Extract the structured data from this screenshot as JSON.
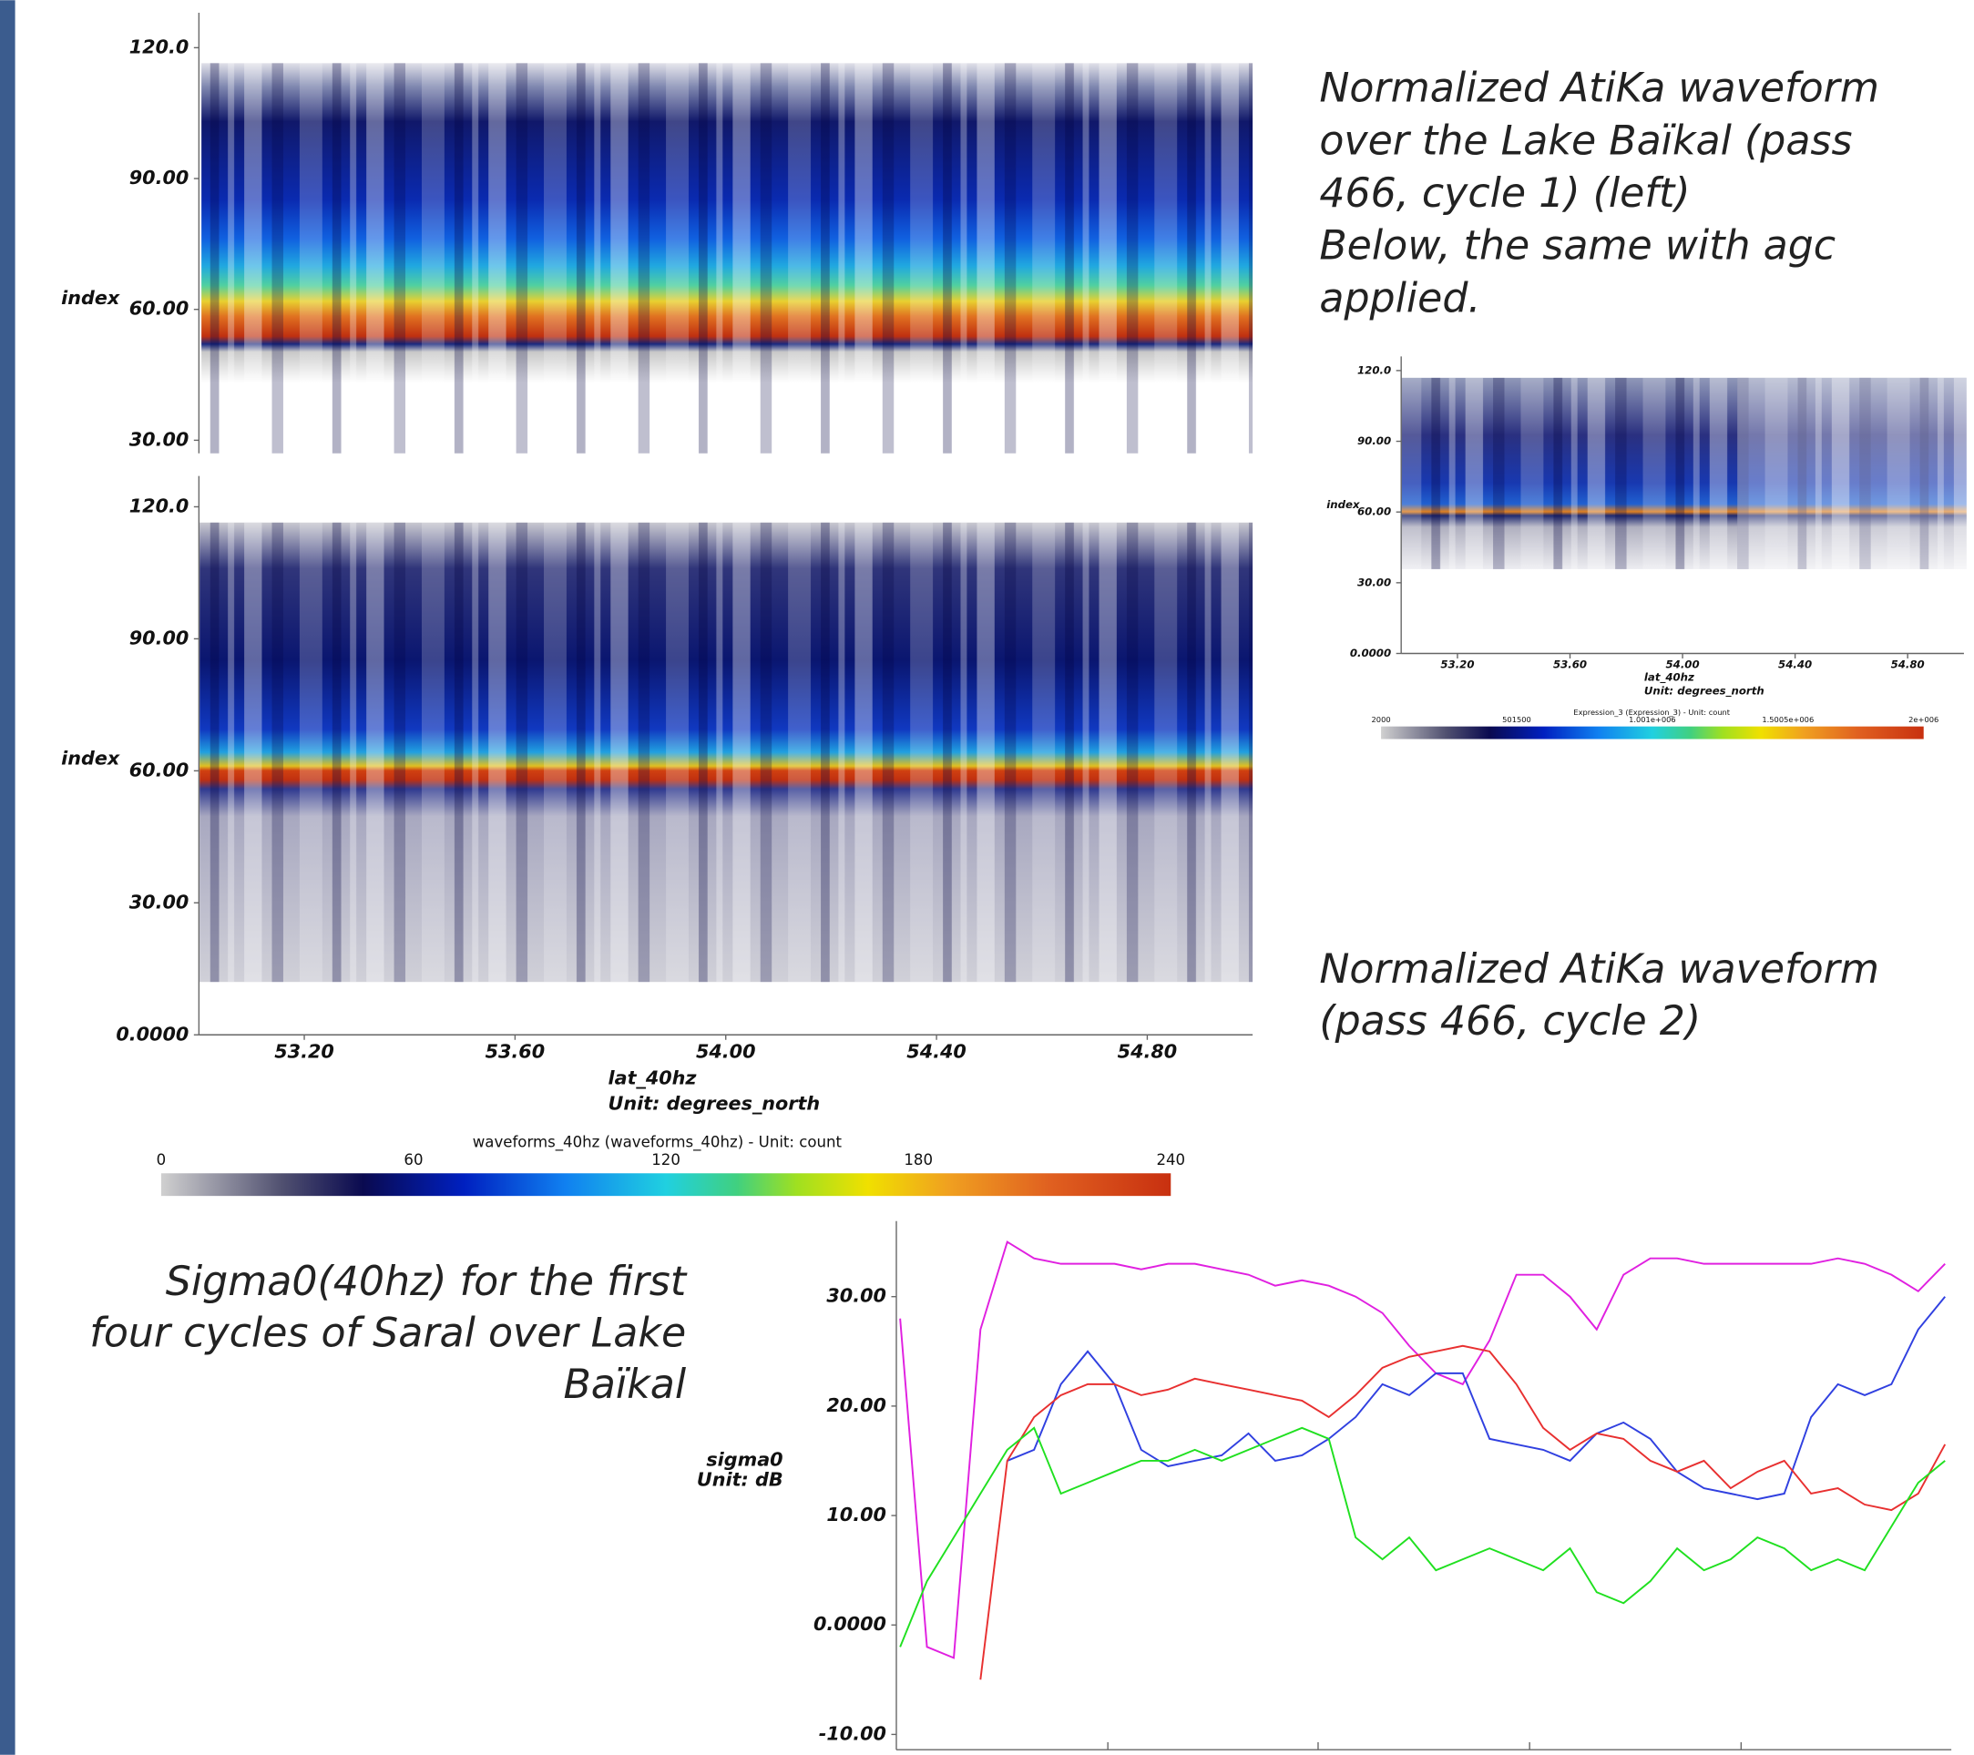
{
  "chart_data": [
    {
      "type": "heatmap",
      "ylabel": "index",
      "ylim": [
        27,
        128
      ],
      "yticks": [
        {
          "value": 30,
          "label": "30.00"
        },
        {
          "value": 60,
          "label": "60.00"
        },
        {
          "value": 90,
          "label": "90.00"
        },
        {
          "value": 120,
          "label": "120.0"
        }
      ],
      "annotations": [
        "Normalized AtiKa waveform",
        "over the Lake Baïkal (pass",
        "466, cycle 1) (left)",
        "Below, the same with agc",
        "applied."
      ]
    },
    {
      "type": "heatmap",
      "ylabel": "index",
      "xlabel": "lat_40hz",
      "xunit": "Unit: degrees_north",
      "ylim": [
        0,
        127
      ],
      "xlim": [
        53.0,
        55.0
      ],
      "yticks": [
        {
          "value": 0,
          "label": "0.0000"
        },
        {
          "value": 30,
          "label": "30.00"
        },
        {
          "value": 60,
          "label": "60.00"
        },
        {
          "value": 90,
          "label": "90.00"
        },
        {
          "value": 120,
          "label": "120.0"
        }
      ],
      "xticks": [
        {
          "value": 53.2,
          "label": "53.20"
        },
        {
          "value": 53.6,
          "label": "53.60"
        },
        {
          "value": 54,
          "label": "54.00"
        },
        {
          "value": 54.4,
          "label": "54.40"
        },
        {
          "value": 54.8,
          "label": "54.80"
        }
      ],
      "colorbar": {
        "title": "waveforms_40hz (waveforms_40hz) - Unit: count",
        "lim": [
          0,
          240
        ],
        "ticks": [
          0,
          60,
          120,
          180,
          240
        ]
      },
      "annotations": [
        "Normalized AtiKa waveform",
        "(pass 466, cycle 2)"
      ]
    },
    {
      "type": "heatmap",
      "ylabel": "index",
      "xlabel": "lat_40hz",
      "xunit": "Unit: degrees_north",
      "ylim": [
        0,
        126
      ],
      "xlim": [
        53.0,
        55.0
      ],
      "yticks": [
        {
          "value": 0,
          "label": "0.0000"
        },
        {
          "value": 30,
          "label": "30.00"
        },
        {
          "value": 60,
          "label": "60.00"
        },
        {
          "value": 90,
          "label": "90.00"
        },
        {
          "value": 120,
          "label": "120.0"
        }
      ],
      "xticks": [
        {
          "value": 53.2,
          "label": "53.20"
        },
        {
          "value": 53.6,
          "label": "53.60"
        },
        {
          "value": 54,
          "label": "54.00"
        },
        {
          "value": 54.4,
          "label": "54.40"
        },
        {
          "value": 54.8,
          "label": "54.80"
        }
      ],
      "colorbar": {
        "title": "Expression_3 (Expression_3) - Unit: count",
        "lim": [
          2000,
          2000000
        ],
        "ticks": [
          2000,
          501500,
          {
            "value": 1001000,
            "label": "1.001e+006"
          },
          {
            "value": 1500500,
            "label": "1.5005e+006"
          },
          {
            "value": 2000000,
            "label": "2e+006"
          }
        ]
      }
    },
    {
      "type": "line",
      "ylabel": "sigma0",
      "yunit": "Unit: dB",
      "ylim": [
        -11.4,
        36.9
      ],
      "yticks": [
        {
          "value": -10,
          "label": "-10.00"
        },
        {
          "value": 0,
          "label": "0.0000"
        },
        {
          "value": 10,
          "label": "10.00"
        },
        {
          "value": 20,
          "label": "20.00"
        },
        {
          "value": 30,
          "label": "30.00"
        }
      ],
      "series": [
        {
          "color": "#e020e0",
          "values": [
            28,
            -2,
            -3,
            27,
            35,
            33.5,
            33,
            33,
            33,
            32.5,
            33,
            33,
            32.5,
            32,
            31,
            31.5,
            31,
            30,
            28.5,
            25.5,
            23,
            22,
            26,
            32,
            32,
            30,
            27,
            32,
            33.5,
            33.5,
            33,
            33,
            33,
            33,
            33,
            33.5,
            33,
            32,
            30.5,
            33
          ]
        },
        {
          "color": "#3040e0",
          "values": [
            null,
            null,
            null,
            null,
            15,
            16,
            22,
            25,
            22,
            16,
            14.5,
            15,
            15.5,
            17.5,
            15,
            15.5,
            17,
            19,
            22,
            21,
            23,
            23,
            17,
            16.5,
            16,
            15,
            17.5,
            18.5,
            17,
            14,
            12.5,
            12,
            11.5,
            12,
            19,
            22,
            21,
            22,
            27,
            30
          ]
        },
        {
          "color": "#e83030",
          "values": [
            null,
            null,
            null,
            -5,
            15,
            19,
            21,
            22,
            22,
            21,
            21.5,
            22.5,
            22,
            21.5,
            21,
            20.5,
            19,
            21,
            23.5,
            24.5,
            25,
            25.5,
            25,
            22,
            18,
            16,
            17.5,
            17,
            15,
            14,
            15,
            12.5,
            14,
            15,
            12,
            12.5,
            11,
            10.5,
            12,
            16.5
          ]
        },
        {
          "color": "#20e020",
          "values": [
            -2,
            4,
            8,
            12,
            16,
            18,
            12,
            13,
            14,
            15,
            15,
            16,
            15,
            16,
            17,
            18,
            17,
            8,
            6,
            8,
            5,
            6,
            7,
            6,
            5,
            7,
            3,
            2,
            4,
            7,
            5,
            6,
            8,
            7,
            5,
            6,
            5,
            9,
            13,
            15
          ]
        }
      ],
      "annotations": [
        "Sigma0(40hz) for the first",
        "four cycles of Saral over Lake",
        "Baïkal"
      ]
    }
  ]
}
